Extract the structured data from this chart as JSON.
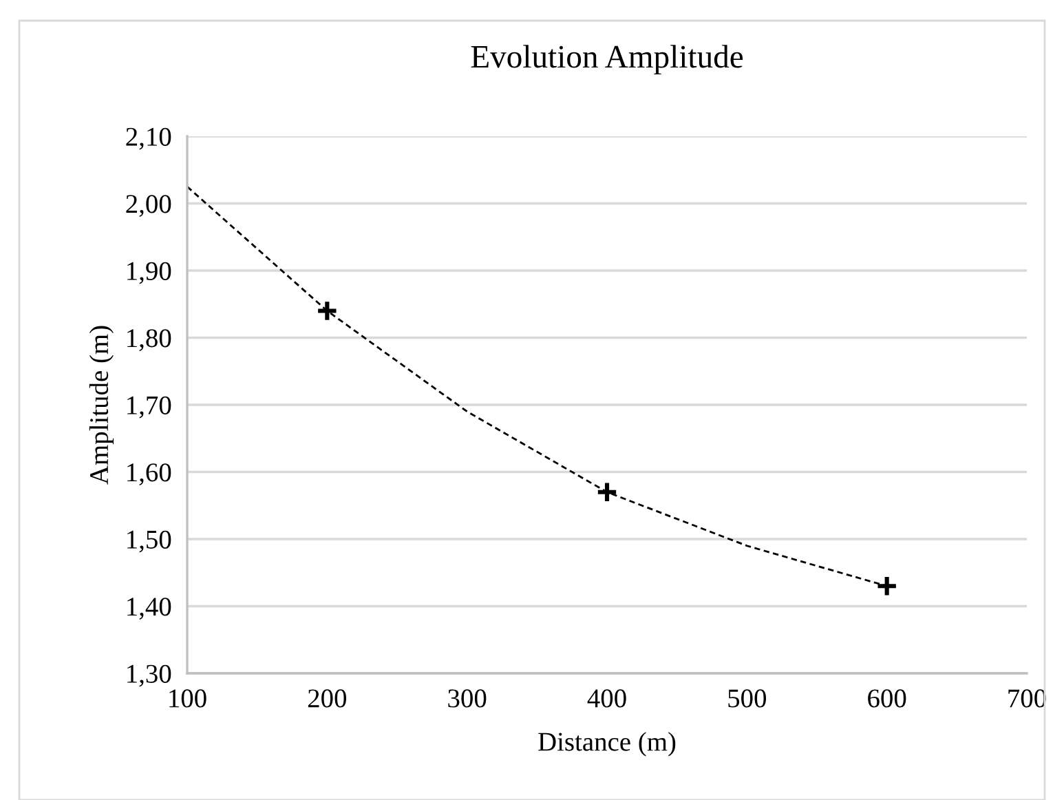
{
  "chart_data": {
    "type": "scatter",
    "title": "Evolution Amplitude",
    "xlabel": "Distance (m)",
    "ylabel": "Amplitude (m)",
    "x": [
      200,
      400,
      600
    ],
    "series": [
      {
        "type": "scatter",
        "color": "#000000",
        "marker": "cross",
        "values": [
          1.84,
          1.57,
          1.43
        ]
      },
      {
        "type": "line",
        "color": "#000000",
        "marker": "none",
        "line_style": "dashed",
        "x": [
          100,
          200,
          300,
          400,
          500,
          600
        ],
        "values": [
          2.025,
          1.84,
          1.69,
          1.57,
          1.49,
          1.43
        ]
      }
    ],
    "xlim": [
      100,
      700
    ],
    "xticks": [
      100,
      200,
      300,
      400,
      500,
      600,
      700
    ],
    "ylim": [
      1.3,
      2.1
    ],
    "yticks": [
      {
        "value": 1.3,
        "label": "1,30"
      },
      {
        "value": 1.4,
        "label": "1,40"
      },
      {
        "value": 1.5,
        "label": "1,50"
      },
      {
        "value": 1.6,
        "label": "1,60"
      },
      {
        "value": 1.7,
        "label": "1,70"
      },
      {
        "value": 1.8,
        "label": "1,80"
      },
      {
        "value": 1.9,
        "label": "1,90"
      },
      {
        "value": 2.0,
        "label": "2,00"
      },
      {
        "value": 2.1,
        "label": "2,10"
      }
    ],
    "grid": "y",
    "legend": false
  }
}
